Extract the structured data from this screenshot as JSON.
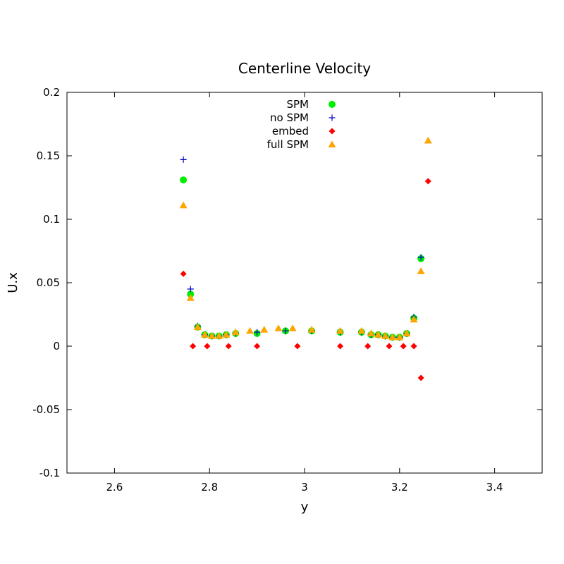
{
  "chart_data": {
    "type": "scatter",
    "title": "Centerline Velocity",
    "xlabel": "y",
    "ylabel": "U.x",
    "xlim": [
      2.5,
      3.5
    ],
    "ylim": [
      -0.1,
      0.2
    ],
    "xticks": [
      2.6,
      2.8,
      3.0,
      3.2,
      3.4
    ],
    "xtick_labels": [
      "2.6",
      "2.8",
      "3",
      "3.2",
      "3.4"
    ],
    "yticks": [
      -0.1,
      -0.05,
      0,
      0.05,
      0.1,
      0.15,
      0.2
    ],
    "ytick_labels": [
      "-0.1",
      "-0.05",
      "0",
      "0.05",
      "0.1",
      "0.15",
      "0.2"
    ],
    "grid": false,
    "legend_position": "top-center",
    "series": [
      {
        "name": "SPM",
        "marker": "circle",
        "color": "#00ee00",
        "x": [
          2.745,
          2.76,
          2.775,
          2.79,
          2.805,
          2.82,
          2.835,
          2.855,
          2.9,
          2.96,
          3.015,
          3.075,
          3.12,
          3.14,
          3.155,
          3.17,
          3.185,
          3.2,
          3.215,
          3.23,
          3.245
        ],
        "y": [
          0.131,
          0.041,
          0.015,
          0.009,
          0.008,
          0.008,
          0.009,
          0.01,
          0.01,
          0.012,
          0.012,
          0.011,
          0.011,
          0.009,
          0.009,
          0.008,
          0.007,
          0.007,
          0.01,
          0.022,
          0.069
        ]
      },
      {
        "name": "no SPM",
        "marker": "plus",
        "color": "#0000cc",
        "x": [
          2.745,
          2.76,
          2.775,
          2.79,
          2.805,
          2.82,
          2.835,
          2.855,
          2.9,
          2.96,
          3.015,
          3.075,
          3.12,
          3.14,
          3.155,
          3.17,
          3.185,
          3.2,
          3.215,
          3.23,
          3.245
        ],
        "y": [
          0.147,
          0.045,
          0.016,
          0.009,
          0.008,
          0.008,
          0.009,
          0.01,
          0.011,
          0.012,
          0.012,
          0.011,
          0.011,
          0.009,
          0.009,
          0.008,
          0.007,
          0.007,
          0.01,
          0.023,
          0.07
        ]
      },
      {
        "name": "embed",
        "marker": "diamond",
        "color": "#ff0000",
        "x": [
          2.745,
          2.765,
          2.795,
          2.84,
          2.9,
          2.985,
          3.075,
          3.133,
          3.178,
          3.208,
          3.23,
          3.245,
          3.26
        ],
        "y": [
          0.057,
          0.0,
          0.0,
          0.0,
          0.0,
          0.0,
          0.0,
          0.0,
          0.0,
          0.0,
          0.0,
          -0.025,
          0.13
        ]
      },
      {
        "name": "full SPM",
        "marker": "triangle",
        "color": "#ffa500",
        "x": [
          2.745,
          2.76,
          2.775,
          2.79,
          2.805,
          2.82,
          2.835,
          2.855,
          2.885,
          2.915,
          2.945,
          2.975,
          3.015,
          3.075,
          3.12,
          3.14,
          3.155,
          3.17,
          3.185,
          3.2,
          3.215,
          3.23,
          3.245,
          3.26
        ],
        "y": [
          0.111,
          0.038,
          0.015,
          0.009,
          0.008,
          0.008,
          0.009,
          0.011,
          0.012,
          0.013,
          0.014,
          0.014,
          0.013,
          0.012,
          0.012,
          0.01,
          0.009,
          0.008,
          0.007,
          0.007,
          0.01,
          0.021,
          0.059,
          0.162
        ]
      }
    ]
  }
}
